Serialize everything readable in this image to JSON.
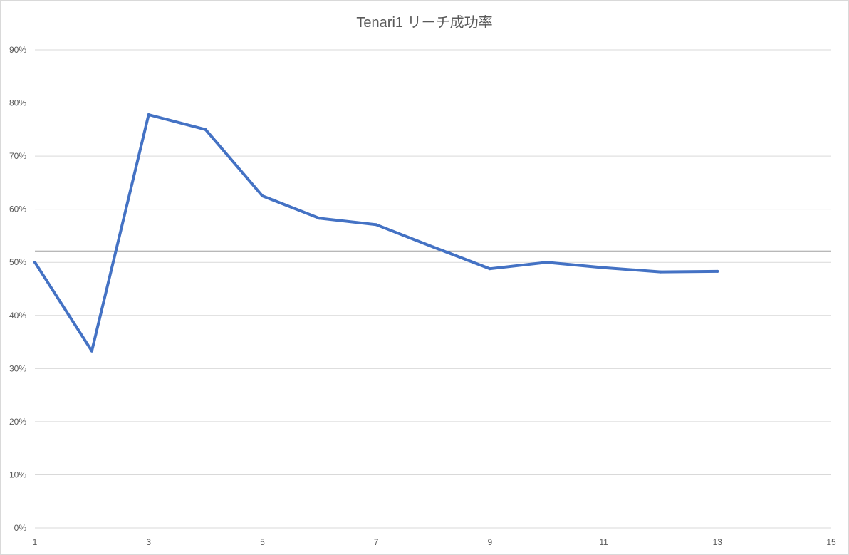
{
  "chart_data": {
    "type": "line",
    "title": "Tenari1 リーチ成功率",
    "xlabel": "",
    "ylabel": "",
    "xlim": [
      1,
      15
    ],
    "ylim": [
      0,
      0.9
    ],
    "x_ticks": [
      1,
      3,
      5,
      7,
      9,
      11,
      13,
      15
    ],
    "x_tick_labels": [
      "1",
      "3",
      "5",
      "7",
      "9",
      "11",
      "13",
      "15"
    ],
    "y_ticks": [
      0,
      0.1,
      0.2,
      0.3,
      0.4,
      0.5,
      0.6,
      0.7,
      0.8,
      0.9
    ],
    "y_tick_labels": [
      "0%",
      "10%",
      "20%",
      "30%",
      "40%",
      "50%",
      "60%",
      "70%",
      "80%",
      "90%"
    ],
    "grid": "horizontal",
    "legend": "none",
    "series": [
      {
        "x": [
          1,
          2,
          3,
          4,
          5,
          6,
          7,
          8,
          9,
          10,
          11,
          12,
          13
        ],
        "values": [
          0.5,
          0.333,
          0.778,
          0.75,
          0.625,
          0.583,
          0.571,
          0.529,
          0.488,
          0.5,
          0.49,
          0.482,
          0.483
        ],
        "color": "#4472C4"
      }
    ],
    "reference_line": {
      "value": 0.521,
      "color": "#404040"
    },
    "colors": {
      "grid": "#D9D9D9",
      "axis": "#D9D9D9",
      "text": "#595959"
    }
  }
}
